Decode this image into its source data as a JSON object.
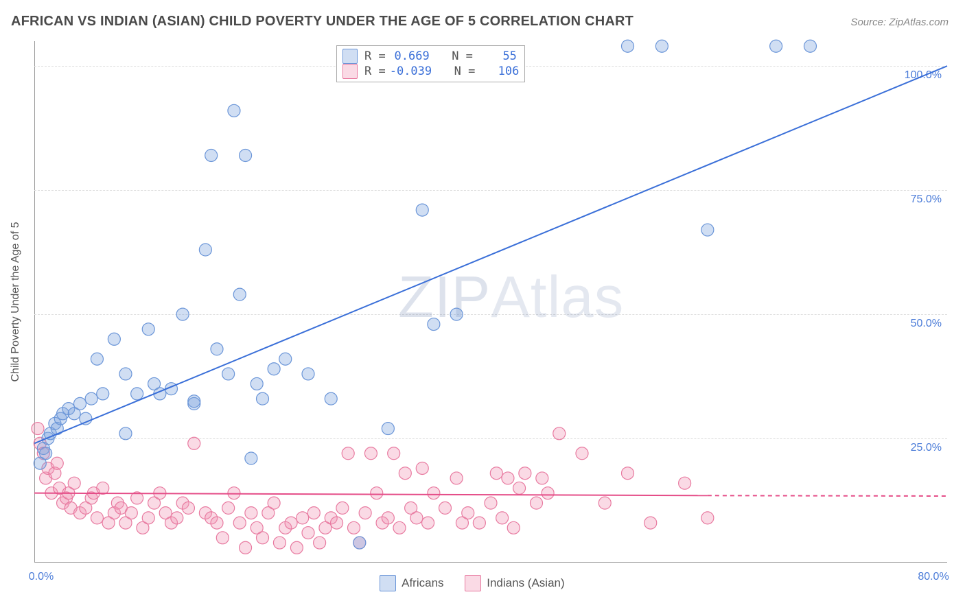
{
  "title": "AFRICAN VS INDIAN (ASIAN) CHILD POVERTY UNDER THE AGE OF 5 CORRELATION CHART",
  "source": "Source: ZipAtlas.com",
  "y_axis_title": "Child Poverty Under the Age of 5",
  "watermark": "ZIPAtlas",
  "chart": {
    "type": "scatter",
    "xlim": [
      0,
      80
    ],
    "ylim": [
      0,
      105
    ],
    "yticks": [
      25,
      50,
      75,
      100
    ],
    "ytick_labels": [
      "25.0%",
      "50.0%",
      "75.0%",
      "100.0%"
    ],
    "xtick_left": {
      "value": 0,
      "label": "0.0%"
    },
    "xtick_right": {
      "value": 80,
      "label": "80.0%"
    },
    "background_color": "#ffffff",
    "grid_color": "#dddddd",
    "axis_color": "#999999"
  },
  "series": [
    {
      "name": "Africans",
      "fill": "rgba(120,160,220,0.35)",
      "stroke": "#6a95d8",
      "line_color": "#3a6fd8",
      "line_width": 2,
      "R": "0.669",
      "N": "55",
      "regression": {
        "x1": 0,
        "y1": 24,
        "x2": 80,
        "y2": 100,
        "dash": false
      },
      "radius": 9,
      "points": [
        [
          0.5,
          20
        ],
        [
          0.8,
          23
        ],
        [
          1.0,
          22
        ],
        [
          1.2,
          25
        ],
        [
          1.4,
          26
        ],
        [
          1.8,
          28
        ],
        [
          2.0,
          27
        ],
        [
          2.3,
          29
        ],
        [
          2.5,
          30
        ],
        [
          3.0,
          31
        ],
        [
          3.5,
          30
        ],
        [
          4,
          32
        ],
        [
          4.5,
          29
        ],
        [
          5,
          33
        ],
        [
          5.5,
          41
        ],
        [
          6,
          34
        ],
        [
          7,
          45
        ],
        [
          8,
          38
        ],
        [
          8,
          26
        ],
        [
          9,
          34
        ],
        [
          10,
          47
        ],
        [
          10.5,
          36
        ],
        [
          11,
          34
        ],
        [
          12,
          35
        ],
        [
          13,
          50
        ],
        [
          14,
          32
        ],
        [
          14,
          32.5
        ],
        [
          15,
          63
        ],
        [
          15.5,
          82
        ],
        [
          16,
          43
        ],
        [
          17,
          38
        ],
        [
          17.5,
          91
        ],
        [
          18,
          54
        ],
        [
          18.5,
          82
        ],
        [
          19,
          21
        ],
        [
          19.5,
          36
        ],
        [
          20,
          33
        ],
        [
          21,
          39
        ],
        [
          22,
          41
        ],
        [
          24,
          38
        ],
        [
          26,
          33
        ],
        [
          28.5,
          4
        ],
        [
          31,
          27
        ],
        [
          34,
          71
        ],
        [
          35,
          48
        ],
        [
          37,
          50
        ],
        [
          52,
          104
        ],
        [
          55,
          104
        ],
        [
          59,
          67
        ],
        [
          65,
          104
        ],
        [
          68,
          104
        ]
      ]
    },
    {
      "name": "Indians (Asian)",
      "fill": "rgba(240,150,180,0.35)",
      "stroke": "#e87aa0",
      "line_color": "#e54d88",
      "line_width": 2,
      "R": "-0.039",
      "N": "106",
      "regression": {
        "x1": 0,
        "y1": 14,
        "x2": 59,
        "y2": 13.5,
        "dash": false,
        "x2_dash": 80,
        "y2_dash": 13.4
      },
      "radius": 9,
      "points": [
        [
          0.3,
          27
        ],
        [
          0.5,
          24
        ],
        [
          0.8,
          22
        ],
        [
          1,
          17
        ],
        [
          1.2,
          19
        ],
        [
          1.5,
          14
        ],
        [
          1.8,
          18
        ],
        [
          2,
          20
        ],
        [
          2.2,
          15
        ],
        [
          2.5,
          12
        ],
        [
          2.8,
          13
        ],
        [
          3,
          14
        ],
        [
          3.2,
          11
        ],
        [
          3.5,
          16
        ],
        [
          4,
          10
        ],
        [
          4.5,
          11
        ],
        [
          5,
          13
        ],
        [
          5.2,
          14
        ],
        [
          5.5,
          9
        ],
        [
          6,
          15
        ],
        [
          6.5,
          8
        ],
        [
          7,
          10
        ],
        [
          7.3,
          12
        ],
        [
          7.6,
          11
        ],
        [
          8,
          8
        ],
        [
          8.5,
          10
        ],
        [
          9,
          13
        ],
        [
          9.5,
          7
        ],
        [
          10,
          9
        ],
        [
          10.5,
          12
        ],
        [
          11,
          14
        ],
        [
          11.5,
          10
        ],
        [
          12,
          8
        ],
        [
          12.5,
          9
        ],
        [
          13,
          12
        ],
        [
          13.5,
          11
        ],
        [
          14,
          24
        ],
        [
          15,
          10
        ],
        [
          15.5,
          9
        ],
        [
          16,
          8
        ],
        [
          16.5,
          5
        ],
        [
          17,
          11
        ],
        [
          17.5,
          14
        ],
        [
          18,
          8
        ],
        [
          18.5,
          3
        ],
        [
          19,
          10
        ],
        [
          19.5,
          7
        ],
        [
          20,
          5
        ],
        [
          20.5,
          10
        ],
        [
          21,
          12
        ],
        [
          21.5,
          4
        ],
        [
          22,
          7
        ],
        [
          22.5,
          8
        ],
        [
          23,
          3
        ],
        [
          23.5,
          9
        ],
        [
          24,
          6
        ],
        [
          24.5,
          10
        ],
        [
          25,
          4
        ],
        [
          25.5,
          7
        ],
        [
          26,
          9
        ],
        [
          26.5,
          8
        ],
        [
          27,
          11
        ],
        [
          27.5,
          22
        ],
        [
          28,
          7
        ],
        [
          28.5,
          4
        ],
        [
          29,
          10
        ],
        [
          29.5,
          22
        ],
        [
          30,
          14
        ],
        [
          30.5,
          8
        ],
        [
          31,
          9
        ],
        [
          31.5,
          22
        ],
        [
          32,
          7
        ],
        [
          32.5,
          18
        ],
        [
          33,
          11
        ],
        [
          33.5,
          9
        ],
        [
          34,
          19
        ],
        [
          34.5,
          8
        ],
        [
          35,
          14
        ],
        [
          36,
          11
        ],
        [
          37,
          17
        ],
        [
          37.5,
          8
        ],
        [
          38,
          10
        ],
        [
          39,
          8
        ],
        [
          40,
          12
        ],
        [
          40.5,
          18
        ],
        [
          41,
          9
        ],
        [
          41.5,
          17
        ],
        [
          42,
          7
        ],
        [
          42.5,
          15
        ],
        [
          43,
          18
        ],
        [
          44,
          12
        ],
        [
          44.5,
          17
        ],
        [
          45,
          14
        ],
        [
          46,
          26
        ],
        [
          48,
          22
        ],
        [
          50,
          12
        ],
        [
          52,
          18
        ],
        [
          54,
          8
        ],
        [
          57,
          16
        ],
        [
          59,
          9
        ]
      ]
    }
  ],
  "legend_bottom": {
    "items": [
      {
        "swatch_fill": "rgba(120,160,220,0.35)",
        "swatch_stroke": "#6a95d8",
        "label": "Africans"
      },
      {
        "swatch_fill": "rgba(240,150,180,0.35)",
        "swatch_stroke": "#e87aa0",
        "label": "Indians (Asian)"
      }
    ]
  },
  "stats_legend": {
    "r_label": "R =",
    "n_label": "N ="
  }
}
